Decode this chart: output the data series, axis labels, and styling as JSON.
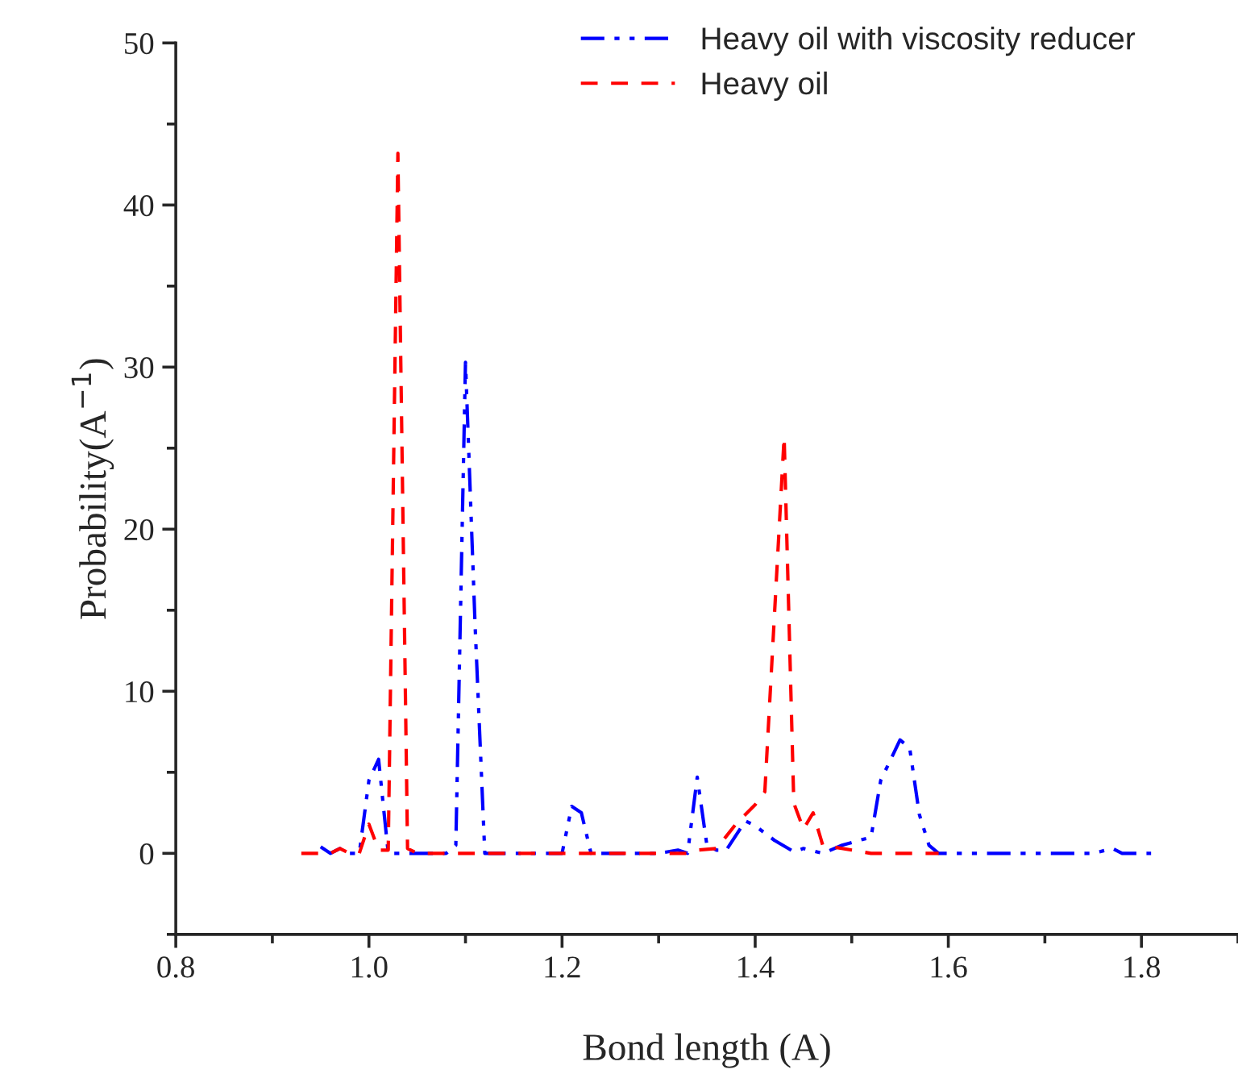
{
  "chart_data": {
    "type": "line",
    "xlabel": "Bond length (A)",
    "ylabel": "Probability(A$^{−1}$)",
    "xlim": [
      0.8,
      1.9
    ],
    "xticks": [
      0.8,
      {
        "value": 1,
        "label": "1.0"
      },
      1.2,
      1.4,
      1.6,
      1.8
    ],
    "ylim": [
      -5,
      50
    ],
    "yticks": [
      0,
      10,
      20,
      30,
      40,
      50
    ],
    "grid": false,
    "legend": "top right",
    "marker": "none",
    "series": [
      {
        "name": "Heavy oil with viscosity reducer",
        "color": "#0000ff",
        "line_style": "dashdotdot",
        "x": [
          0.95,
          0.96,
          0.97,
          0.98,
          0.99,
          1.0,
          1.01,
          1.02,
          1.05,
          1.08,
          1.09,
          1.1,
          1.11,
          1.12,
          1.15,
          1.18,
          1.2,
          1.21,
          1.22,
          1.23,
          1.26,
          1.3,
          1.32,
          1.33,
          1.34,
          1.35,
          1.36,
          1.37,
          1.39,
          1.4,
          1.42,
          1.44,
          1.45,
          1.47,
          1.49,
          1.52,
          1.53,
          1.55,
          1.56,
          1.57,
          1.58,
          1.59,
          1.65,
          1.7,
          1.75,
          1.77,
          1.78,
          1.81
        ],
        "values": [
          0.4,
          0,
          0.3,
          0,
          0,
          4.5,
          5.8,
          0,
          0,
          0,
          0.5,
          30.3,
          14,
          0,
          0,
          0,
          0,
          2.9,
          2.5,
          0,
          0,
          0,
          0.2,
          0,
          4.7,
          0.5,
          0.2,
          0.2,
          2.0,
          1.7,
          0.8,
          0.1,
          0.3,
          0,
          0.5,
          1.0,
          4.5,
          7.0,
          6.5,
          2.4,
          0.5,
          0,
          0,
          0,
          0,
          0.3,
          0,
          0
        ]
      },
      {
        "name": "Heavy oil",
        "color": "#ff0000",
        "line_style": "dashed",
        "x": [
          0.93,
          0.96,
          0.97,
          0.98,
          0.99,
          1.0,
          1.01,
          1.02,
          1.03,
          1.04,
          1.05,
          1.1,
          1.2,
          1.3,
          1.33,
          1.34,
          1.36,
          1.38,
          1.4,
          1.41,
          1.43,
          1.44,
          1.45,
          1.46,
          1.47,
          1.48,
          1.5,
          1.52,
          1.55,
          1.59
        ],
        "values": [
          0,
          0,
          0.3,
          0,
          0,
          1.8,
          0.2,
          0.2,
          43.2,
          0.3,
          0,
          0,
          0,
          0,
          0,
          0.2,
          0.3,
          1.8,
          3.0,
          3.8,
          25.7,
          3.1,
          1.5,
          2.5,
          0.5,
          0.4,
          0.2,
          0,
          0,
          0
        ]
      }
    ]
  }
}
